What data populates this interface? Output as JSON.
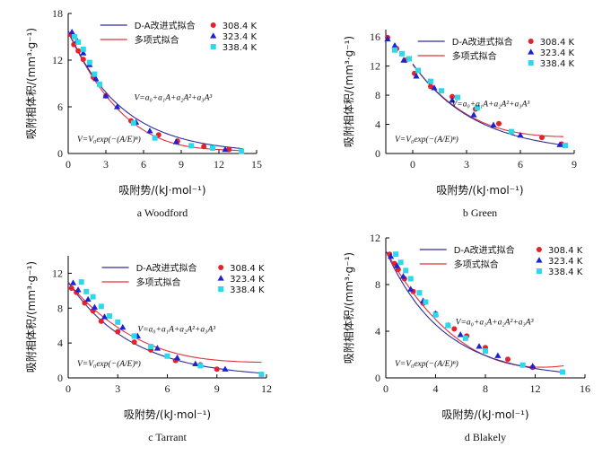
{
  "colors": {
    "da_fit": "#2e2e96",
    "poly_fit": "#e0303a",
    "s308": "#e8202a",
    "s323": "#1c22d6",
    "s338": "#2ed8ec",
    "axis": "#000000"
  },
  "chart_data": [
    {
      "type": "scatter",
      "panel_label": "a",
      "title": "Woodford",
      "xlabel": "吸附势/(kJ·mol⁻¹)",
      "ylabel": "吸附相体积/(mm³·g⁻¹)",
      "xlim": [
        0,
        15
      ],
      "ylim": [
        0,
        18
      ],
      "xticks": [
        0,
        3,
        6,
        9,
        12,
        15
      ],
      "yticks": [
        0,
        6,
        12,
        18
      ],
      "legend": {
        "lines": [
          "D-A改进式拟合",
          "多项式拟合"
        ],
        "series": [
          "308.4 K",
          "323.4 K",
          "338.4 K"
        ]
      },
      "eq_poly": "V=a₀+a₁A+a₂A²+a₃A³",
      "eq_da": "V=V₀exp(−(A/E)ⁿ)",
      "series": [
        {
          "name": "308.4 K",
          "marker": "circle",
          "points": [
            [
              0.2,
              15.3
            ],
            [
              0.45,
              14.0
            ],
            [
              0.8,
              13.2
            ],
            [
              1.2,
              12.1
            ],
            [
              2.0,
              9.8
            ],
            [
              3.0,
              7.4
            ],
            [
              5.0,
              4.2
            ],
            [
              7.2,
              2.4
            ],
            [
              8.7,
              1.6
            ],
            [
              10.8,
              0.9
            ],
            [
              12.8,
              0.5
            ]
          ]
        },
        {
          "name": "323.4 K",
          "marker": "triangle",
          "points": [
            [
              0.3,
              15.6
            ],
            [
              0.7,
              14.5
            ],
            [
              1.2,
              12.9
            ],
            [
              1.7,
              11.4
            ],
            [
              2.2,
              9.6
            ],
            [
              3.0,
              7.4
            ],
            [
              3.9,
              6.0
            ],
            [
              5.4,
              4.0
            ],
            [
              6.5,
              2.9
            ],
            [
              8.6,
              1.5
            ],
            [
              12.5,
              0.5
            ]
          ]
        },
        {
          "name": "338.4 K",
          "marker": "square",
          "points": [
            [
              0.5,
              15.0
            ],
            [
              0.8,
              14.3
            ],
            [
              1.2,
              13.4
            ],
            [
              1.7,
              11.7
            ],
            [
              2.1,
              10.2
            ],
            [
              2.5,
              8.9
            ],
            [
              5.2,
              3.9
            ],
            [
              6.9,
              2.0
            ],
            [
              9.8,
              1.0
            ],
            [
              11.5,
              0.7
            ],
            [
              13.8,
              0.3
            ]
          ]
        }
      ],
      "da_fit": {
        "V0": 15.8,
        "E": 4.3,
        "n": 1.0,
        "xmax": 13.9
      },
      "poly_fit": [
        15.6,
        -3.46,
        0.2696,
        -0.00717
      ]
    },
    {
      "type": "scatter",
      "panel_label": "b",
      "title": "Green",
      "xlabel": "吸附势/(kJ·mol⁻¹)",
      "ylabel": "吸附相体积/(mm³·g⁻¹)",
      "xlim": [
        -1.5,
        9
      ],
      "ylim": [
        0,
        17
      ],
      "xticks": [
        0,
        3,
        6,
        9
      ],
      "yticks": [
        0,
        4,
        8,
        12,
        16
      ],
      "legend": {
        "lines": [
          "D-A改进式拟合",
          "多项式拟合"
        ],
        "series": [
          "308.4 K",
          "323.4 K",
          "338.4 K"
        ]
      },
      "eq_poly": "V=a₀+a₁A+a₂A²+a₃A³",
      "eq_da": "V=V₀exp(−(A/E)ⁿ)",
      "series": [
        {
          "name": "308.4 K",
          "marker": "circle",
          "points": [
            [
              -1.4,
              15.9
            ],
            [
              -0.9,
              14.4
            ],
            [
              -0.4,
              12.8
            ],
            [
              0.1,
              11.0
            ],
            [
              1.0,
              9.2
            ],
            [
              2.2,
              7.8
            ],
            [
              3.5,
              6.1
            ],
            [
              4.8,
              4.1
            ],
            [
              7.2,
              2.2
            ],
            [
              8.3,
              1.3
            ]
          ]
        },
        {
          "name": "323.4 K",
          "marker": "triangle",
          "points": [
            [
              -1.4,
              15.7
            ],
            [
              -1.0,
              14.8
            ],
            [
              -0.5,
              12.8
            ],
            [
              0.2,
              10.6
            ],
            [
              1.2,
              9.0
            ],
            [
              2.2,
              7.3
            ],
            [
              3.4,
              5.3
            ],
            [
              4.5,
              3.9
            ],
            [
              6.0,
              2.5
            ],
            [
              8.2,
              1.2
            ]
          ]
        },
        {
          "name": "338.4 K",
          "marker": "square",
          "points": [
            [
              -1.0,
              14.2
            ],
            [
              -0.6,
              13.7
            ],
            [
              -0.2,
              13.0
            ],
            [
              0.3,
              11.4
            ],
            [
              1.0,
              9.9
            ],
            [
              1.6,
              8.6
            ],
            [
              2.5,
              7.7
            ],
            [
              3.6,
              6.3
            ],
            [
              5.5,
              3.0
            ],
            [
              8.5,
              1.1
            ]
          ]
        }
      ],
      "da_fit": {
        "V0": 12.3,
        "E": 3.55,
        "n": 1.0,
        "xmax": 8.4
      },
      "poly_fit": [
        12.2,
        -3.2,
        0.35,
        -0.013
      ]
    },
    {
      "type": "scatter",
      "panel_label": "c",
      "title": "Tarrant",
      "xlabel": "吸附势/(kJ·mol⁻¹)",
      "ylabel": "吸附相体积/(mm³·g⁻¹)",
      "xlim": [
        0,
        12
      ],
      "ylim": [
        0,
        14
      ],
      "xticks": [
        0,
        3,
        6,
        9,
        12
      ],
      "yticks": [
        0,
        4,
        8,
        12
      ],
      "legend": {
        "lines": [
          "D-A改进式拟合",
          "多项式拟合"
        ],
        "series": [
          "308.4 K",
          "323.4 K",
          "338.4 K"
        ]
      },
      "eq_poly": "V=a₀+a₁A+a₂A²+a₃A³",
      "eq_da": "V=V₀exp(−(A/E)ⁿ)",
      "series": [
        {
          "name": "308.4 K",
          "marker": "circle",
          "points": [
            [
              0.2,
              10.3
            ],
            [
              0.5,
              9.8
            ],
            [
              1.0,
              8.6
            ],
            [
              1.5,
              7.7
            ],
            [
              2.0,
              6.5
            ],
            [
              3.0,
              5.3
            ],
            [
              4.0,
              4.1
            ],
            [
              5.0,
              3.2
            ],
            [
              6.5,
              2.0
            ],
            [
              8.0,
              1.5
            ],
            [
              9.0,
              1.0
            ]
          ]
        },
        {
          "name": "323.4 K",
          "marker": "triangle",
          "points": [
            [
              0.3,
              10.9
            ],
            [
              0.6,
              10.1
            ],
            [
              1.2,
              9.0
            ],
            [
              1.6,
              8.1
            ],
            [
              2.2,
              7.0
            ],
            [
              3.3,
              5.8
            ],
            [
              4.2,
              4.8
            ],
            [
              5.4,
              3.4
            ],
            [
              6.6,
              2.3
            ],
            [
              7.7,
              1.6
            ],
            [
              9.5,
              1.0
            ]
          ]
        },
        {
          "name": "338.4 K",
          "marker": "square",
          "points": [
            [
              0.8,
              11.0
            ],
            [
              1.1,
              9.9
            ],
            [
              1.5,
              9.3
            ],
            [
              2.0,
              8.2
            ],
            [
              2.5,
              7.1
            ],
            [
              3.0,
              6.4
            ],
            [
              4.0,
              4.8
            ],
            [
              5.0,
              3.6
            ],
            [
              6.0,
              2.5
            ],
            [
              8.0,
              1.4
            ],
            [
              11.7,
              0.4
            ]
          ]
        }
      ],
      "da_fit": {
        "V0": 11.0,
        "E": 3.9,
        "n": 1.0,
        "xmax": 11.7
      },
      "poly_fit": [
        10.9,
        -2.2,
        0.18,
        -0.005
      ]
    },
    {
      "type": "scatter",
      "panel_label": "d",
      "title": "Blakely",
      "xlabel": "吸附势/(kJ·mol⁻¹)",
      "ylabel": "吸附相体积/(mm³·g⁻¹)",
      "xlim": [
        0,
        16
      ],
      "ylim": [
        0,
        12
      ],
      "xticks": [
        0,
        4,
        8,
        12,
        16
      ],
      "yticks": [
        0,
        4,
        8,
        12
      ],
      "legend": {
        "lines": [
          "D-A改进式拟合",
          "多项式拟合"
        ],
        "series": [
          "308.4 K",
          "323.4 K",
          "338.4 K"
        ]
      },
      "eq_poly": "V=a₀+a₁A+a₂A²+a₃A³",
      "eq_da": "V=V₀exp(−(A/E)ⁿ)",
      "series": [
        {
          "name": "308.4 K",
          "marker": "circle",
          "points": [
            [
              0.3,
              10.6
            ],
            [
              0.7,
              9.8
            ],
            [
              1.0,
              9.3
            ],
            [
              1.5,
              8.5
            ],
            [
              2.2,
              7.4
            ],
            [
              3.0,
              6.4
            ],
            [
              4.0,
              5.5
            ],
            [
              5.5,
              4.2
            ],
            [
              6.5,
              3.6
            ],
            [
              8.0,
              2.6
            ],
            [
              9.8,
              1.6
            ],
            [
              11.8,
              0.9
            ]
          ]
        },
        {
          "name": "323.4 K",
          "marker": "triangle",
          "points": [
            [
              0.4,
              10.4
            ],
            [
              0.9,
              9.6
            ],
            [
              1.4,
              8.7
            ],
            [
              2.0,
              7.6
            ],
            [
              3.0,
              6.6
            ],
            [
              4.0,
              5.5
            ],
            [
              5.0,
              4.5
            ],
            [
              6.0,
              3.7
            ],
            [
              7.5,
              2.7
            ],
            [
              9.0,
              1.9
            ],
            [
              11.8,
              1.0
            ]
          ]
        },
        {
          "name": "338.4 K",
          "marker": "square",
          "points": [
            [
              0.8,
              10.6
            ],
            [
              1.2,
              9.9
            ],
            [
              1.6,
              9.2
            ],
            [
              2.0,
              8.5
            ],
            [
              2.7,
              7.3
            ],
            [
              3.2,
              6.5
            ],
            [
              4.0,
              5.4
            ],
            [
              5.0,
              4.5
            ],
            [
              6.4,
              3.4
            ],
            [
              8.0,
              2.3
            ],
            [
              11.0,
              1.1
            ],
            [
              14.2,
              0.5
            ]
          ]
        }
      ],
      "da_fit": {
        "V0": 10.9,
        "E": 4.6,
        "n": 1.0,
        "xmax": 14.3
      },
      "poly_fit": [
        10.9,
        -1.88,
        0.109,
        -0.0018
      ]
    }
  ]
}
